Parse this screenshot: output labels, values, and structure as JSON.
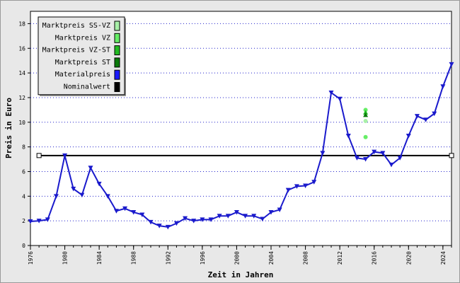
{
  "chart_data": {
    "type": "line",
    "title": "",
    "xlabel": "Zeit in Jahren",
    "ylabel": "Preis in Euro",
    "xlim": [
      1976,
      2025
    ],
    "ylim": [
      0,
      19
    ],
    "x_ticks": [
      "1976",
      "1980",
      "1984",
      "1988",
      "1992",
      "1996",
      "2000",
      "2004",
      "2008",
      "2012",
      "2016",
      "2020",
      "2024"
    ],
    "y_ticks": [
      "0",
      "2",
      "4",
      "6",
      "8",
      "10",
      "12",
      "14",
      "16",
      "18"
    ],
    "grid": "horizontal-dotted",
    "legend_position": "top-left",
    "legend": [
      {
        "name": "Marktpreis SS-VZ",
        "color": "#a8f0a8"
      },
      {
        "name": "Marktpreis VZ",
        "color": "#66ee66"
      },
      {
        "name": "Marktpreis VZ-ST",
        "color": "#22bb22"
      },
      {
        "name": "Marktpreis ST",
        "color": "#0a7a0a"
      },
      {
        "name": "Materialpreis",
        "color": "#1a1aff"
      },
      {
        "name": "Nominalwert",
        "color": "#000000"
      }
    ],
    "series": [
      {
        "name": "Materialpreis",
        "color": "#1a1acc",
        "x": [
          1976,
          1977,
          1978,
          1979,
          1980,
          1981,
          1982,
          1983,
          1984,
          1985,
          1986,
          1987,
          1988,
          1989,
          1990,
          1991,
          1992,
          1993,
          1994,
          1995,
          1996,
          1997,
          1998,
          1999,
          2000,
          2001,
          2002,
          2003,
          2004,
          2005,
          2006,
          2007,
          2008,
          2009,
          2010,
          2011,
          2012,
          2013,
          2014,
          2015,
          2016,
          2017,
          2018,
          2019,
          2020,
          2021,
          2022,
          2023,
          2024,
          2025
        ],
        "y": [
          1.95,
          2.0,
          2.1,
          4.0,
          7.3,
          4.6,
          4.1,
          6.3,
          5.0,
          4.0,
          2.8,
          3.0,
          2.7,
          2.5,
          1.9,
          1.6,
          1.5,
          1.8,
          2.2,
          2.0,
          2.1,
          2.1,
          2.4,
          2.4,
          2.7,
          2.4,
          2.4,
          2.15,
          2.7,
          2.9,
          4.5,
          4.8,
          4.85,
          5.15,
          7.5,
          12.4,
          11.9,
          8.9,
          7.1,
          7.0,
          7.6,
          7.5,
          6.55,
          7.1,
          8.9,
          10.5,
          10.2,
          10.7,
          12.9,
          14.7
        ]
      },
      {
        "name": "Nominalwert",
        "color": "#000000",
        "x": [
          1977,
          2025
        ],
        "y": [
          7.3,
          7.3
        ]
      },
      {
        "name": "Marktpreis SS-VZ",
        "color": "#a8f0a8",
        "x": [
          2015
        ],
        "y": [
          10.1
        ]
      },
      {
        "name": "Marktpreis VZ",
        "color": "#66ee66",
        "x": [
          2015,
          2015
        ],
        "y": [
          11.0,
          8.8
        ]
      },
      {
        "name": "Marktpreis VZ-ST",
        "color": "#22bb22",
        "x": [
          2015
        ],
        "y": [
          10.8
        ]
      },
      {
        "name": "Marktpreis ST",
        "color": "#0a7a0a",
        "x": [
          2015
        ],
        "y": [
          10.6
        ]
      }
    ]
  }
}
